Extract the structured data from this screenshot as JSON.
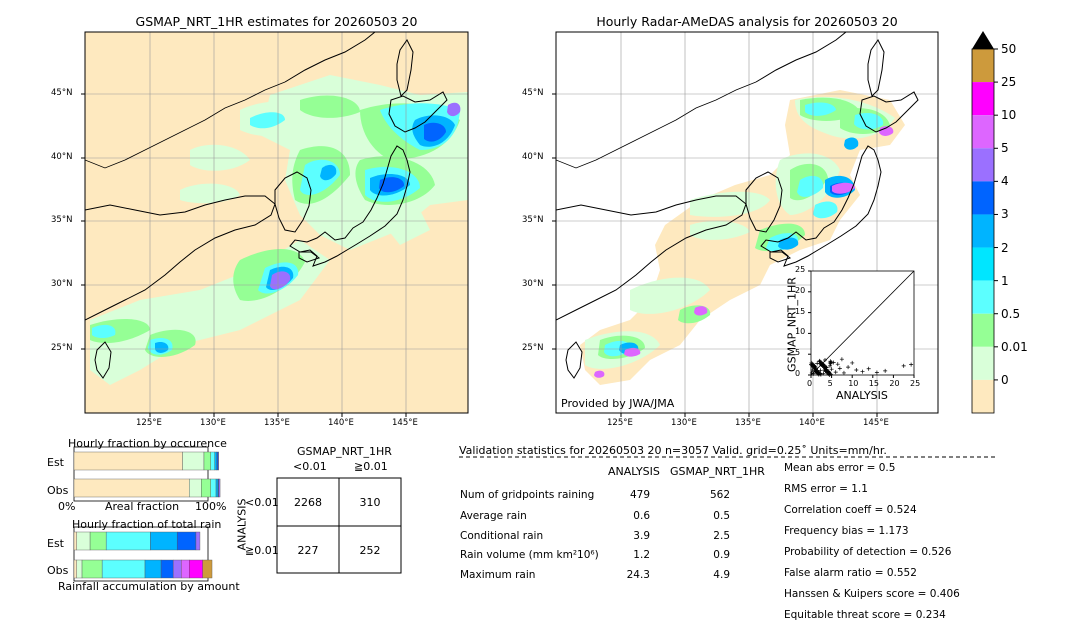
{
  "map_left": {
    "title": "GSMAP_NRT_1HR estimates for 20260503 20",
    "lat_ticks": [
      "45°N",
      "40°N",
      "35°N",
      "30°N",
      "25°N"
    ],
    "lon_ticks": [
      "125°E",
      "130°E",
      "135°E",
      "140°E",
      "145°E"
    ]
  },
  "map_right": {
    "title": "Hourly Radar-AMeDAS analysis for 20260503 20",
    "lat_ticks": [
      "45°N",
      "40°N",
      "35°N",
      "30°N",
      "25°N"
    ],
    "lon_ticks": [
      "125°E",
      "130°E",
      "135°E",
      "140°E",
      "145°E"
    ],
    "credit": "Provided by JWA/JMA"
  },
  "colorbar": {
    "labels": [
      "50",
      "25",
      "10",
      "5",
      "4",
      "3",
      "2",
      "1",
      "0.5",
      "0.01",
      "0"
    ],
    "colors": [
      "#cd9a3c",
      "#ff00ff",
      "#dd66ff",
      "#9b70ff",
      "#0064ff",
      "#00b4ff",
      "#00e6ff",
      "#5cffff",
      "#95ff95",
      "#d9ffd9",
      "#fee9bf"
    ]
  },
  "scatter": {
    "xlabel": "ANALYSIS",
    "ylabel": "GSMAP_NRT_1HR",
    "ticks": [
      "0",
      "5",
      "10",
      "15",
      "20",
      "25"
    ],
    "yticks": [
      "0",
      "5",
      "10",
      "15",
      "20",
      "25"
    ]
  },
  "fraction_occurrence": {
    "title": "Hourly fraction by occurence",
    "rows": [
      "Est",
      "Obs"
    ],
    "xlabels": [
      "0%",
      "Areal fraction",
      "100%"
    ]
  },
  "fraction_total": {
    "title": "Hourly fraction of total rain",
    "rows": [
      "Est",
      "Obs"
    ],
    "xlabel": "Rainfall accumulation by amount"
  },
  "contingency": {
    "title": "GSMAP_NRT_1HR",
    "col_labels": [
      "<0.01",
      "≧0.01"
    ],
    "row_axis": "ANALYSIS",
    "row_labels": [
      "<0.01",
      "≧0.01"
    ],
    "cells": [
      [
        "2268",
        "310"
      ],
      [
        "227",
        "252"
      ]
    ]
  },
  "validation": {
    "header": "Validation statistics for 20260503 20  n=3057 Valid. grid=0.25˚ Units=mm/hr.",
    "col_headers": [
      "ANALYSIS",
      "GSMAP_NRT_1HR"
    ],
    "rows": [
      {
        "label": "Num of gridpoints raining",
        "analysis": "479",
        "gsmap": "562"
      },
      {
        "label": "Average rain",
        "analysis": "0.6",
        "gsmap": "0.5"
      },
      {
        "label": "Conditional rain",
        "analysis": "3.9",
        "gsmap": "2.5"
      },
      {
        "label": "Rain volume (mm km²10⁶)",
        "analysis": "1.2",
        "gsmap": "0.9"
      },
      {
        "label": "Maximum rain",
        "analysis": "24.3",
        "gsmap": "4.9"
      }
    ],
    "scores": [
      "Mean abs error =    0.5",
      "RMS error =    1.1",
      "Correlation coeff =  0.524",
      "Frequency bias =  1.173",
      "Probability of detection =  0.526",
      "False alarm ratio =  0.552",
      "Hanssen & Kuipers score =  0.406",
      "Equitable threat score =  0.234"
    ]
  },
  "chart_data": [
    {
      "type": "heatmap",
      "title": "GSMAP_NRT_1HR estimates for 20260503 20",
      "x_ticks": [
        "125°E",
        "130°E",
        "135°E",
        "140°E",
        "145°E"
      ],
      "y_ticks": [
        "45°N",
        "40°N",
        "35°N",
        "30°N",
        "25°N"
      ]
    },
    {
      "type": "heatmap",
      "title": "Hourly Radar-AMeDAS analysis for 20260503 20",
      "x_ticks": [
        "125°E",
        "130°E",
        "135°E",
        "140°E",
        "145°E"
      ],
      "y_ticks": [
        "45°N",
        "40°N",
        "35°N",
        "30°N",
        "25°N"
      ]
    },
    {
      "type": "scatter",
      "xlabel": "ANALYSIS",
      "ylabel": "GSMAP_NRT_1HR",
      "xlim": [
        0,
        25
      ],
      "ylim": [
        0,
        25
      ],
      "x": [
        0.2,
        0.4,
        0.6,
        0.8,
        1.0,
        1.2,
        1.5,
        1.8,
        2.0,
        2.3,
        2.6,
        3.0,
        3.4,
        3.8,
        4.2,
        4.6,
        5.0,
        5.5,
        6.0,
        6.5,
        7.0,
        7.5,
        8.0,
        9.0,
        10.0,
        11.0,
        12.5,
        14.0,
        16.0,
        18.0,
        22.5,
        24.3
      ],
      "y": [
        0.5,
        1.2,
        0.3,
        2.0,
        0.8,
        1.5,
        2.8,
        0.6,
        3.2,
        1.1,
        2.4,
        0.4,
        3.6,
        1.8,
        0.9,
        2.2,
        1.4,
        3.0,
        0.7,
        2.6,
        1.6,
        3.8,
        0.5,
        1.9,
        2.9,
        1.2,
        0.8,
        1.5,
        0.6,
        1.0,
        2.2,
        2.5
      ]
    },
    {
      "type": "bar",
      "title": "Hourly fraction by occurence",
      "categories": [
        "Est",
        "Obs"
      ],
      "series": [
        {
          "values": [
            0.81,
            0.86
          ]
        },
        {
          "values": [
            0.16,
            0.09
          ]
        },
        {
          "values": [
            0.05,
            0.07
          ]
        },
        {
          "values": [
            0.03,
            0.04
          ]
        },
        {
          "values": [
            0.015,
            0.015
          ]
        },
        {
          "values": [
            0.01,
            0.005
          ]
        },
        {
          "values": [
            0.005,
            0.01
          ]
        }
      ]
    },
    {
      "type": "bar",
      "title": "Hourly fraction of total rain",
      "categories": [
        "Est",
        "Obs"
      ],
      "series": [
        {
          "values": [
            0.02,
            0.02
          ]
        },
        {
          "values": [
            0.1,
            0.04
          ]
        },
        {
          "values": [
            0.12,
            0.15
          ]
        },
        {
          "values": [
            0.33,
            0.32
          ]
        },
        {
          "values": [
            0.2,
            0.12
          ]
        },
        {
          "values": [
            0.14,
            0.09
          ]
        },
        {
          "values": [
            0.03,
            0.06
          ]
        },
        {
          "values": [
            0.0,
            0.06
          ]
        },
        {
          "values": [
            0.0,
            0.1
          ]
        },
        {
          "values": [
            0.0,
            0.07
          ]
        }
      ]
    }
  ]
}
